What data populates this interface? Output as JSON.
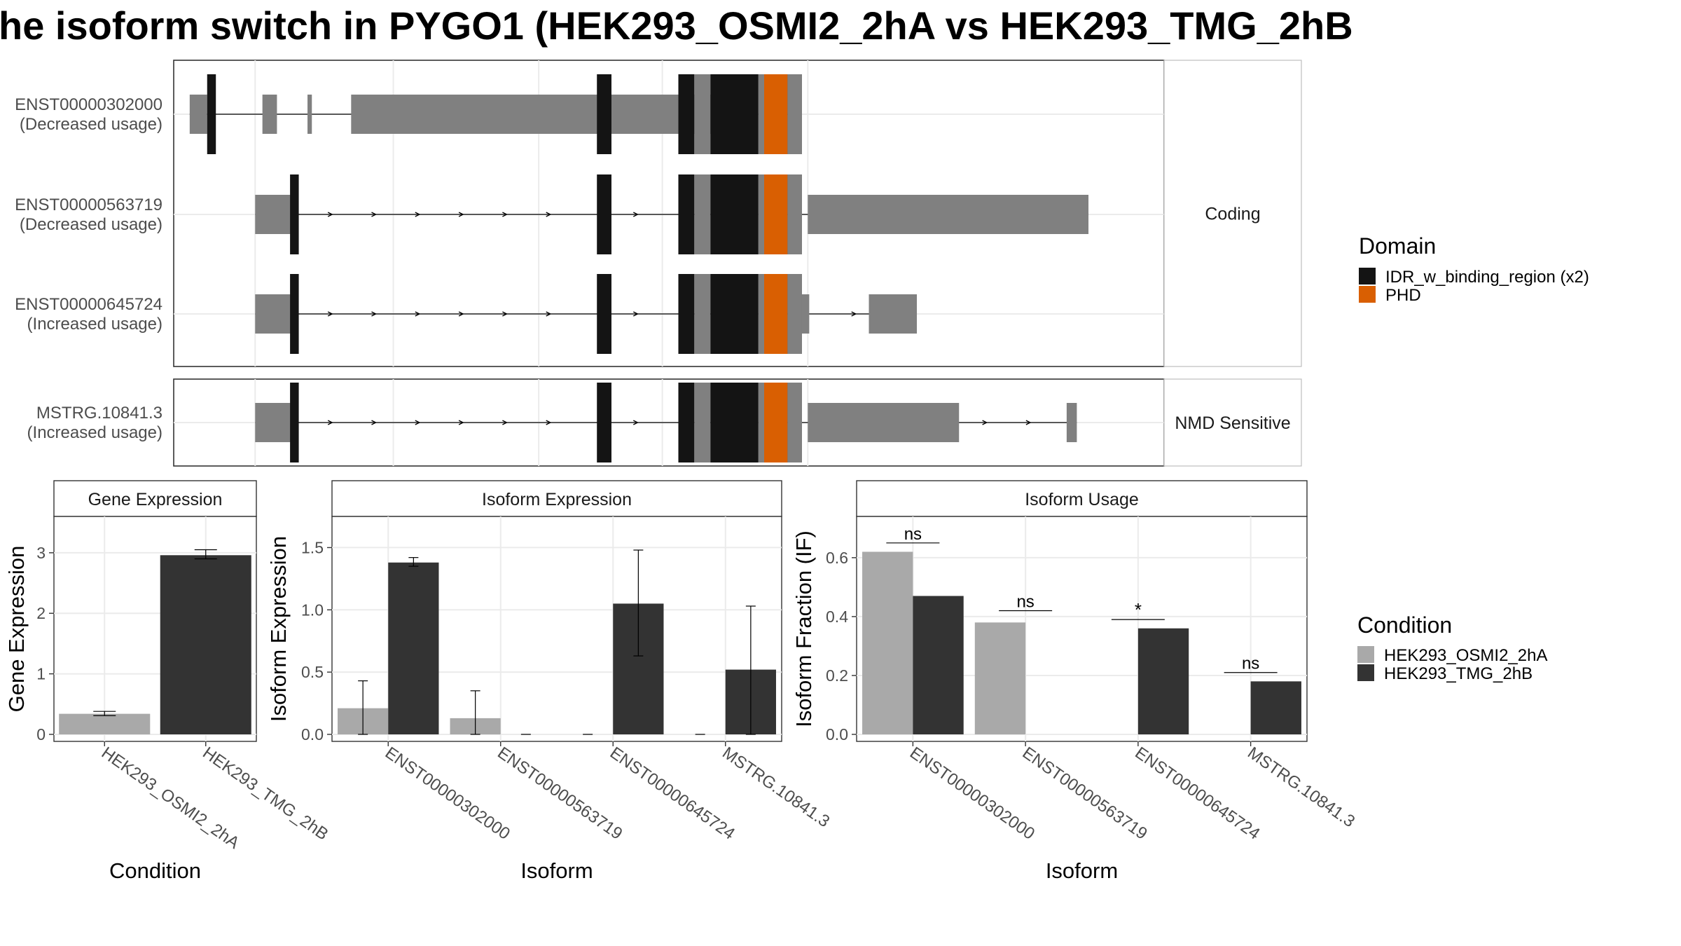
{
  "title": "he isoform switch in PYGO1 (HEK293_OSMI2_2hA vs HEK293_TMG_2hB",
  "colors": {
    "exon": "#808080",
    "idr": "#141414",
    "phd": "#D95F02",
    "cond_a": "#A9A9A9",
    "cond_b": "#333333",
    "grid": "#EBEBEB",
    "strip_bg": "#FFFFFF",
    "border": "#333333"
  },
  "structure": {
    "facets": [
      "Coding",
      "NMD Sensitive"
    ],
    "transcripts": [
      {
        "id": "ENST00000302000",
        "note": "(Decreased usage)",
        "facet": "Coding",
        "utr": [
          [
            0.5,
            1.7
          ],
          [
            5.5,
            6.5
          ],
          [
            8.6,
            8.9
          ],
          [
            11.6,
            38.4
          ]
        ],
        "cds": [
          [
            1.7,
            2.3
          ],
          [
            28.5,
            29.5
          ],
          [
            34.1,
            35.2
          ],
          [
            36.3,
            39.6
          ],
          [
            39.6,
            40.0
          ],
          [
            40.0,
            41.6
          ],
          [
            41.6,
            42.6
          ]
        ],
        "phd": [
          40.0,
          41.6
        ]
      },
      {
        "id": "ENST00000563719",
        "note": "(Decreased usage)",
        "facet": "Coding",
        "utr": [
          [
            5.0,
            7.6
          ],
          [
            43.0,
            62.3
          ]
        ],
        "cds": [
          [
            7.4,
            8.0
          ],
          [
            28.5,
            29.5
          ],
          [
            34.1,
            35.2
          ],
          [
            36.3,
            39.6
          ],
          [
            39.6,
            40.0
          ],
          [
            40.0,
            41.6
          ],
          [
            41.6,
            42.6
          ]
        ],
        "phd": [
          40.0,
          41.6
        ]
      },
      {
        "id": "ENST00000645724",
        "note": "(Increased usage)",
        "facet": "Coding",
        "utr": [
          [
            5.0,
            7.6
          ],
          [
            42.6,
            43.1
          ],
          [
            47.2,
            50.5
          ]
        ],
        "cds": [
          [
            7.4,
            8.0
          ],
          [
            28.5,
            29.5
          ],
          [
            34.1,
            35.2
          ],
          [
            36.3,
            39.6
          ],
          [
            39.6,
            40.0
          ],
          [
            40.0,
            41.6
          ],
          [
            41.6,
            42.6
          ]
        ],
        "phd": [
          40.0,
          41.6
        ]
      },
      {
        "id": "MSTRG.10841.3",
        "note": "(Increased usage)",
        "facet": "NMD Sensitive",
        "utr": [
          [
            5.0,
            7.6
          ],
          [
            43.0,
            53.4
          ],
          [
            60.8,
            61.5
          ]
        ],
        "cds": [
          [
            7.4,
            8.0
          ],
          [
            28.5,
            29.5
          ],
          [
            34.1,
            35.2
          ],
          [
            36.3,
            39.6
          ],
          [
            39.6,
            40.0
          ],
          [
            40.0,
            41.6
          ],
          [
            41.6,
            42.6
          ]
        ],
        "phd": [
          40.0,
          41.6
        ]
      }
    ],
    "legend": {
      "title": "Domain",
      "items": [
        "IDR_w_binding_region (x2)",
        "PHD"
      ]
    }
  },
  "chart_data": [
    {
      "type": "bar",
      "title": "Gene Expression",
      "xlabel": "Condition",
      "ylabel": "Gene Expression",
      "ylim": [
        0,
        3.6
      ],
      "yticks": [
        0,
        1,
        2,
        3
      ],
      "categories": [
        "HEK293_OSMI2_2hA",
        "HEK293_TMG_2hB"
      ],
      "series": [
        {
          "name": "HEK293_OSMI2_2hA",
          "values": [
            0.34,
            null
          ],
          "err_low": [
            0.31,
            null
          ],
          "err_high": [
            0.38,
            null
          ]
        },
        {
          "name": "HEK293_TMG_2hB",
          "values": [
            null,
            2.96
          ],
          "err_low": [
            null,
            2.9
          ],
          "err_high": [
            null,
            3.05
          ]
        }
      ]
    },
    {
      "type": "bar",
      "title": "Isoform Expression",
      "xlabel": "Isoform",
      "ylabel": "Isoform Expression",
      "ylim": [
        0,
        1.75
      ],
      "yticks": [
        0.0,
        0.5,
        1.0,
        1.5
      ],
      "categories": [
        "ENST00000302000",
        "ENST00000563719",
        "ENST00000645724",
        "MSTRG.10841.3"
      ],
      "series": [
        {
          "name": "HEK293_OSMI2_2hA",
          "values": [
            0.21,
            0.13,
            0.0,
            0.0
          ],
          "err_low": [
            0.0,
            0.0,
            0.0,
            0.0
          ],
          "err_high": [
            0.43,
            0.35,
            0.0,
            0.0
          ]
        },
        {
          "name": "HEK293_TMG_2hB",
          "values": [
            1.38,
            0.0,
            1.05,
            0.52
          ],
          "err_low": [
            1.35,
            0.0,
            0.63,
            0.0
          ],
          "err_high": [
            1.42,
            0.0,
            1.48,
            1.03
          ]
        }
      ]
    },
    {
      "type": "bar",
      "title": "Isoform Usage",
      "xlabel": "Isoform",
      "ylabel": "Isoform Fraction (IF)",
      "ylim": [
        0,
        0.74
      ],
      "yticks": [
        0.0,
        0.2,
        0.4,
        0.6
      ],
      "categories": [
        "ENST00000302000",
        "ENST00000563719",
        "ENST00000645724",
        "MSTRG.10841.3"
      ],
      "series": [
        {
          "name": "HEK293_OSMI2_2hA",
          "values": [
            0.62,
            0.38,
            0.0,
            0.0
          ]
        },
        {
          "name": "HEK293_TMG_2hB",
          "values": [
            0.47,
            0.0,
            0.36,
            0.18
          ]
        }
      ],
      "significance": [
        {
          "label": "ns",
          "y": 0.65
        },
        {
          "label": "ns",
          "y": 0.42
        },
        {
          "label": "*",
          "y": 0.39
        },
        {
          "label": "ns",
          "y": 0.21
        }
      ]
    }
  ],
  "condition_legend": {
    "title": "Condition",
    "items": [
      "HEK293_OSMI2_2hA",
      "HEK293_TMG_2hB"
    ]
  }
}
